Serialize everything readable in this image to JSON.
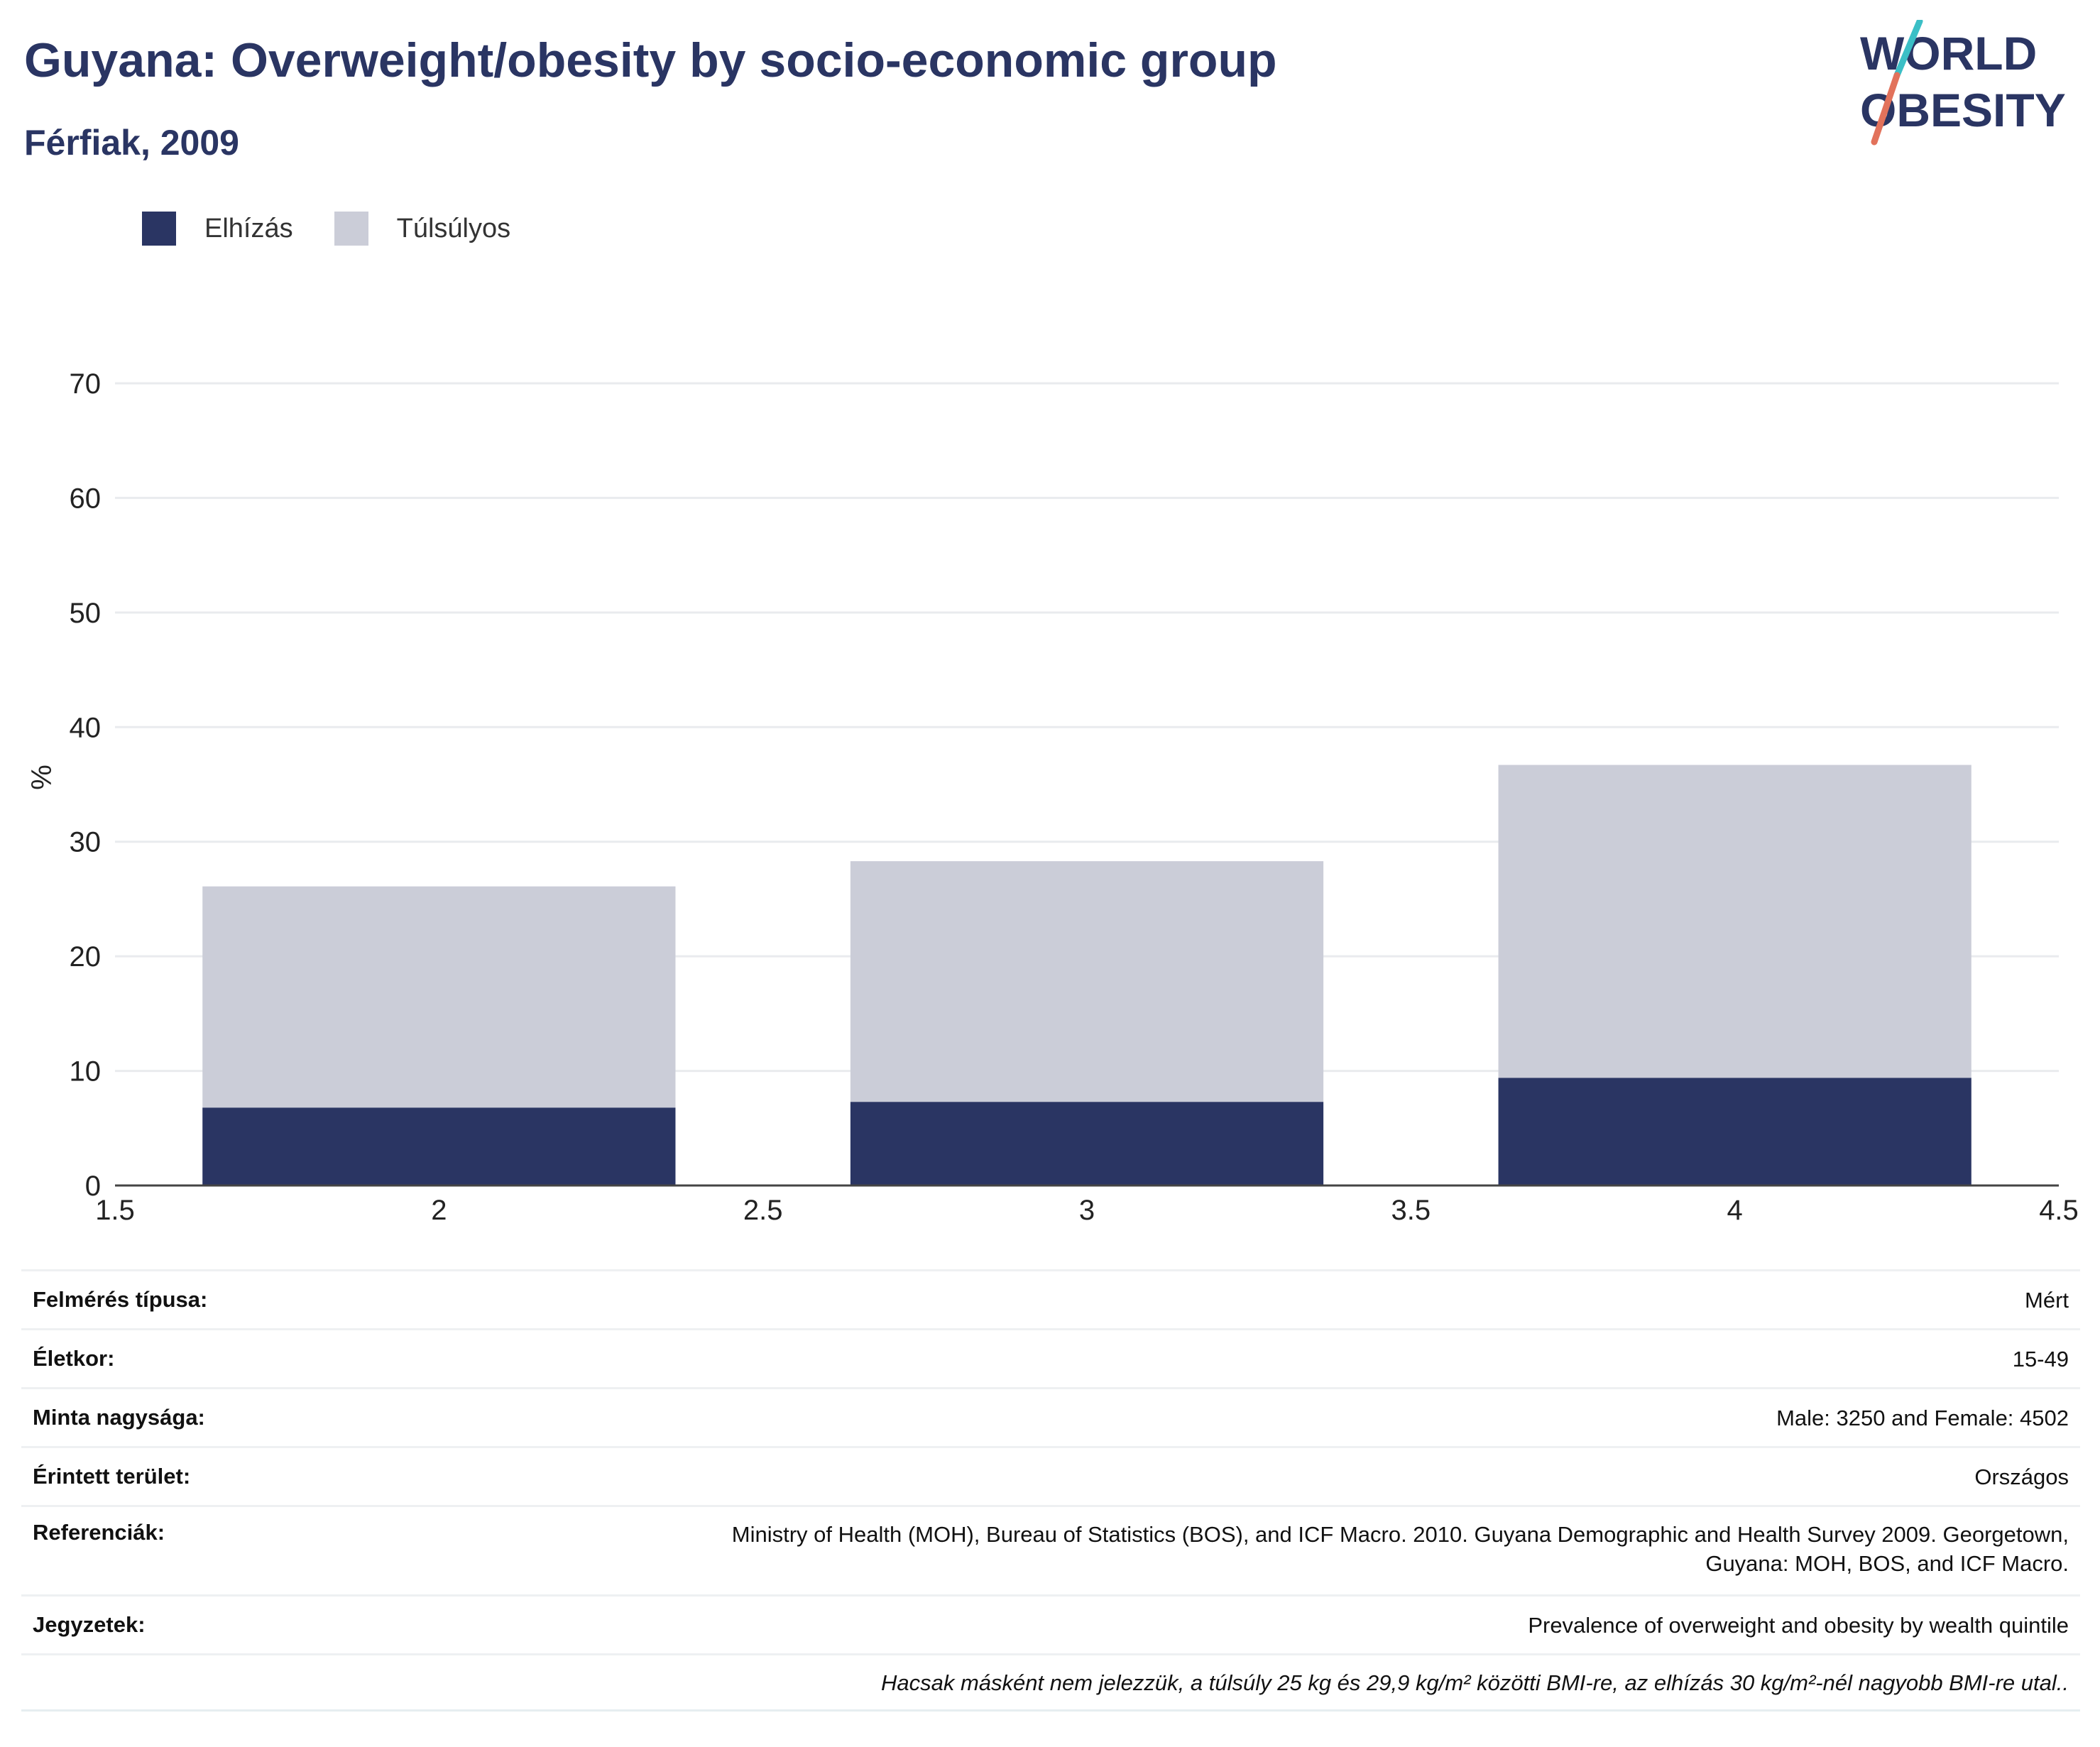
{
  "header": {
    "title": "Guyana: Overweight/obesity by socio-economic group",
    "subtitle": "Férfiak, 2009"
  },
  "logo": {
    "line1": "WORLD",
    "line2": "OBESITY",
    "accent_colors": [
      "#3bbfc6",
      "#e2725b"
    ]
  },
  "legend": [
    {
      "label": "Elhízás",
      "color": "#2a3563"
    },
    {
      "label": "Túlsúlyos",
      "color": "#cbcdd8"
    }
  ],
  "chart_data": {
    "type": "bar",
    "stacked": true,
    "x": [
      2,
      3,
      4
    ],
    "series": [
      {
        "name": "Elhízás",
        "values": [
          6.8,
          7.3,
          9.4
        ],
        "color": "#2a3563"
      },
      {
        "name": "Túlsúlyos",
        "values": [
          19.3,
          21.0,
          27.3
        ],
        "color": "#cbcdd8"
      }
    ],
    "xlim": [
      1.5,
      4.5
    ],
    "ylim": [
      0,
      70
    ],
    "x_ticks": [
      "1.5",
      "2",
      "2.5",
      "3",
      "3.5",
      "4",
      "4.5"
    ],
    "y_ticks": [
      "0",
      "10",
      "20",
      "30",
      "40",
      "50",
      "60",
      "70"
    ],
    "ylabel": "%",
    "xlabel": "",
    "grid": true,
    "legend_position": "top-left"
  },
  "info": {
    "survey_type": {
      "label": "Felmérés típusa:",
      "value": "Mért"
    },
    "age": {
      "label": "Életkor:",
      "value": "15-49"
    },
    "sample_size": {
      "label": "Minta nagysága:",
      "value": "Male: 3250 and Female: 4502"
    },
    "area": {
      "label": "Érintett terület:",
      "value": "Országos"
    },
    "references": {
      "label": "Referenciák:",
      "value_line1": "Ministry of Health (MOH), Bureau of Statistics (BOS), and ICF Macro. 2010. Guyana Demographic and Health Survey 2009. Georgetown,",
      "value_line2": "Guyana: MOH, BOS, and ICF Macro."
    },
    "notes": {
      "label": "Jegyzetek:",
      "value": "Prevalence of overweight and obesity by wealth quintile"
    },
    "footnote": "Hacsak másként nem jelezzük, a túlsúly 25 kg és 29,9 kg/m² közötti BMI-re, az elhízás 30 kg/m²-nél nagyobb BMI-re utal.."
  }
}
